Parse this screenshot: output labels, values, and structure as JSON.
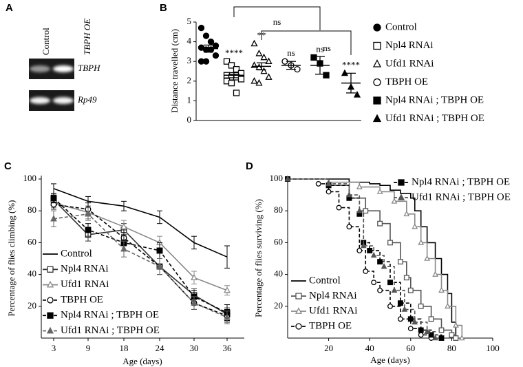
{
  "chart_data": [
    {
      "type": "gel",
      "panel_label": "A",
      "lanes": [
        "Control",
        "TBPH OE"
      ],
      "bands": [
        "TBPH",
        "Rp49"
      ]
    },
    {
      "type": "dot",
      "panel_label": "B",
      "ylabel": "Distance travelled (cm)",
      "ylim": [
        0,
        5
      ],
      "yticks": [
        0,
        1,
        2,
        3,
        4,
        5
      ],
      "brackets": [
        "ns",
        "ns"
      ],
      "series": [
        {
          "name": "Control",
          "marker": "circle",
          "filled": true,
          "color": "#000000",
          "values": [
            4.7,
            4.3,
            4.0,
            3.8,
            3.7,
            3.6,
            3.6,
            3.3,
            3.0,
            3.0
          ],
          "mean": 3.65,
          "error": 0.18
        },
        {
          "name": "Npl4 RNAi",
          "marker": "square",
          "filled": false,
          "color": "#000000",
          "values": [
            3.0,
            2.8,
            2.6,
            2.4,
            2.3,
            2.2,
            2.2,
            2.1,
            2.0,
            1.9,
            1.4
          ],
          "mean": 2.3,
          "error": 0.13,
          "annotation": "****"
        },
        {
          "name": "Ufd1 RNAi",
          "marker": "triangle",
          "filled": false,
          "color": "#000000",
          "values": [
            3.9,
            3.4,
            3.2,
            3.0,
            2.8,
            2.7,
            2.5,
            2.2,
            2.0,
            1.9
          ],
          "mean": 2.75,
          "error": 0.18,
          "annotation": "**"
        },
        {
          "name": "TBPH OE",
          "marker": "circle",
          "filled": false,
          "color": "#000000",
          "values": [
            3.0,
            2.8,
            2.6
          ],
          "mean": 2.8,
          "error": 0.2,
          "annotation": "ns"
        },
        {
          "name": "Npl4 RNAi ; TBPH OE",
          "marker": "square",
          "filled": true,
          "color": "#000000",
          "values": [
            3.2,
            2.9,
            2.3
          ],
          "mean": 2.8,
          "error": 0.45,
          "annotation": "ns"
        },
        {
          "name": "Ufd1 RNAi ; TBPH OE",
          "marker": "triangle",
          "filled": true,
          "color": "#000000",
          "values": [
            2.4,
            1.7,
            1.3
          ],
          "mean": 1.9,
          "error": 0.5,
          "annotation": "****"
        }
      ]
    },
    {
      "type": "line",
      "panel_label": "C",
      "xlabel": "Age (days)",
      "ylabel": "Percentage of flies climbing (%)",
      "categories": [
        "3",
        "9",
        "18",
        "24",
        "30",
        "36"
      ],
      "ylim": [
        0,
        100
      ],
      "yticks": [
        20,
        40,
        60,
        80,
        100
      ],
      "series": [
        {
          "name": "Control",
          "color": "#000000",
          "dashed": false,
          "values": [
            94,
            86,
            83,
            76,
            60,
            51
          ],
          "errors": [
            3,
            3,
            3,
            4,
            4,
            7
          ]
        },
        {
          "name": "Npl4 RNAi",
          "color": "#333333",
          "dashed": false,
          "marker": "square",
          "filled": false,
          "values": [
            87,
            65,
            68,
            45,
            27,
            15
          ],
          "errors": [
            3,
            4,
            4,
            5,
            4,
            4
          ]
        },
        {
          "name": "Ufd1 RNAi",
          "color": "#888888",
          "dashed": false,
          "marker": "triangle",
          "filled": false,
          "values": [
            85,
            79,
            70,
            60,
            38,
            30
          ],
          "errors": [
            3,
            4,
            4,
            4,
            4,
            3
          ]
        },
        {
          "name": "TBPH OE",
          "color": "#000000",
          "dashed": true,
          "marker": "circle",
          "filled": false,
          "values": [
            84,
            81,
            63,
            45,
            22,
            14
          ],
          "errors": [
            3,
            4,
            5,
            5,
            4,
            4
          ]
        },
        {
          "name": "Npl4 RNAi ; TBPH OE",
          "color": "#000000",
          "dashed": true,
          "marker": "square",
          "filled": true,
          "values": [
            88,
            68,
            60,
            55,
            26,
            16
          ],
          "errors": [
            3,
            4,
            5,
            5,
            4,
            5
          ]
        },
        {
          "name": "Ufd1 RNAi ; TBPH OE",
          "color": "#666666",
          "dashed": true,
          "marker": "triangle",
          "filled": true,
          "values": [
            75,
            78,
            56,
            45,
            22,
            13
          ],
          "errors": [
            5,
            4,
            5,
            5,
            4,
            4
          ]
        }
      ]
    },
    {
      "type": "survival",
      "panel_label": "D",
      "xlabel": "Age (days)",
      "ylabel": "Percentage of flies surviving (%)",
      "xlim": [
        0,
        100
      ],
      "xticks": [
        20,
        40,
        60,
        80,
        100
      ],
      "ylim": [
        0,
        100
      ],
      "yticks": [
        20,
        40,
        60,
        80,
        100
      ],
      "series": [
        {
          "name": "Control",
          "color": "#000000",
          "dashed": false,
          "legend": "lower-left",
          "x": [
            0,
            20,
            30,
            40,
            45,
            50,
            55,
            60,
            62,
            65,
            68,
            72,
            75,
            78,
            80,
            82
          ],
          "values": [
            100,
            100,
            98,
            97,
            96,
            93,
            91,
            88,
            80,
            70,
            60,
            50,
            40,
            28,
            10,
            0
          ]
        },
        {
          "name": "Npl4 RNAi",
          "color": "#555555",
          "dashed": false,
          "marker": "square",
          "filled": false,
          "legend": "lower-left",
          "x": [
            0,
            20,
            30,
            38,
            45,
            50,
            55,
            58,
            60,
            65,
            70,
            75,
            80,
            82
          ],
          "values": [
            100,
            96,
            88,
            80,
            72,
            60,
            48,
            38,
            30,
            20,
            12,
            5,
            2,
            0
          ]
        },
        {
          "name": "Ufd1 RNAi",
          "color": "#888888",
          "dashed": false,
          "marker": "triangle",
          "filled": false,
          "legend": "lower-left",
          "x": [
            0,
            20,
            35,
            45,
            52,
            58,
            62,
            65,
            68,
            72,
            75,
            78,
            82,
            85
          ],
          "values": [
            100,
            98,
            95,
            92,
            86,
            78,
            70,
            60,
            50,
            40,
            30,
            20,
            8,
            0
          ]
        },
        {
          "name": "TBPH OE",
          "color": "#000000",
          "dashed": true,
          "marker": "circle",
          "filled": false,
          "legend": "lower-left",
          "x": [
            0,
            15,
            20,
            25,
            30,
            35,
            38,
            42,
            45,
            50,
            55,
            60,
            65,
            70
          ],
          "values": [
            100,
            97,
            92,
            82,
            70,
            55,
            42,
            35,
            30,
            20,
            12,
            6,
            2,
            0
          ]
        },
        {
          "name": "Npl4 RNAi ; TBPH OE",
          "color": "#000000",
          "dashed": true,
          "marker": "square",
          "filled": true,
          "legend": "upper-right",
          "x": [
            0,
            20,
            30,
            35,
            37,
            40,
            45,
            50,
            55,
            60,
            65,
            70,
            75
          ],
          "values": [
            100,
            96,
            88,
            78,
            60,
            55,
            48,
            35,
            22,
            12,
            5,
            2,
            0
          ]
        },
        {
          "name": "Ufd1 RNAi ; TBPH OE",
          "color": "#555555",
          "dashed": true,
          "marker": "triangle",
          "filled": true,
          "legend": "upper-right",
          "x": [
            0,
            20,
            30,
            35,
            37,
            42,
            47,
            52,
            57,
            62,
            68,
            72
          ],
          "values": [
            100,
            97,
            90,
            80,
            58,
            52,
            45,
            30,
            18,
            10,
            4,
            0
          ]
        }
      ]
    }
  ]
}
